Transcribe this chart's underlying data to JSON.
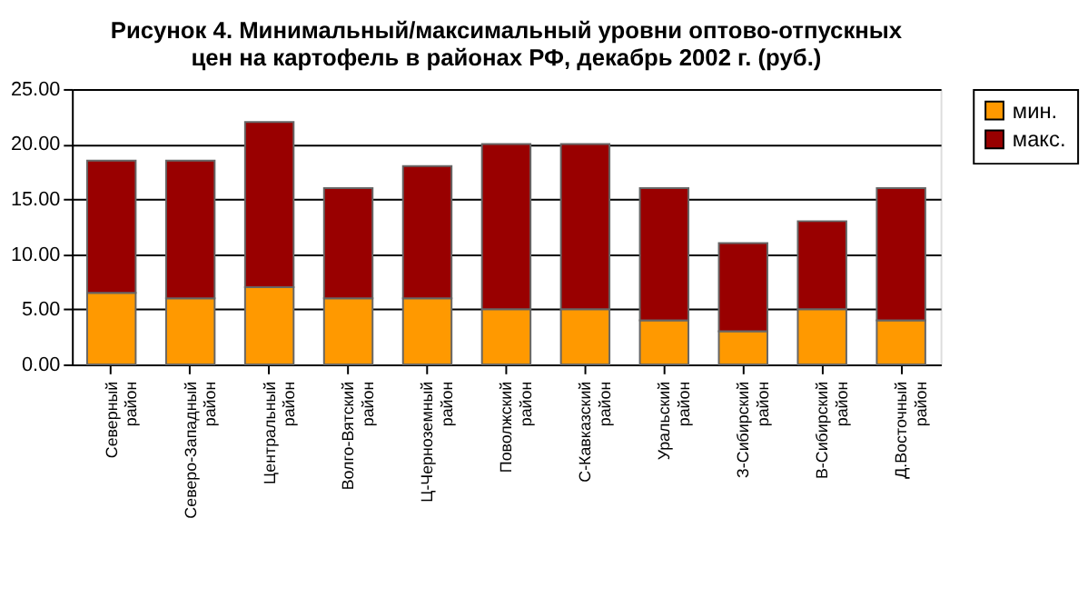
{
  "chart_data": {
    "type": "bar",
    "title": "Рисунок 4. Минимальный/максимальный уровни оптово-отпускных цен на картофель в районах РФ, декабрь 2002 г. (руб.)",
    "categories": [
      "Северный район",
      "Северо-Западный район",
      "Центральный район",
      "Волго-Вятский район",
      "Ц-Черноземный район",
      "Поволжский район",
      "С-Кавказский район",
      "Уральский район",
      "З-Сибирский район",
      "В-Сибирский район",
      "Д.Восточный район"
    ],
    "stacked": true,
    "series": [
      {
        "name": "мин.",
        "color": "#ff9900",
        "values": [
          6.5,
          6,
          7,
          6,
          6,
          5,
          5,
          4,
          3,
          5,
          4
        ]
      },
      {
        "name": "макс.",
        "color": "#990000",
        "values": [
          12,
          12.5,
          15,
          10,
          12,
          15,
          15,
          12,
          8,
          8,
          12
        ]
      }
    ],
    "ylim": [
      0,
      25
    ],
    "yticks": [
      {
        "value": 0,
        "label": "0.00"
      },
      {
        "value": 5,
        "label": "5.00"
      },
      {
        "value": 10,
        "label": "10.00"
      },
      {
        "value": 15,
        "label": "15.00"
      },
      {
        "value": 20,
        "label": "20.00"
      },
      {
        "value": 25,
        "label": "25.00"
      }
    ],
    "grid": "y",
    "legend": "right"
  }
}
